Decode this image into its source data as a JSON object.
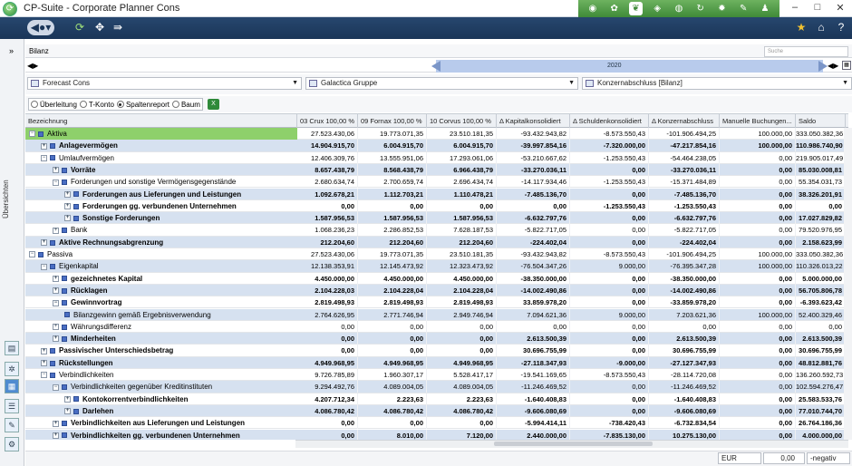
{
  "app": {
    "title": "CP-Suite - Corporate Planner Cons"
  },
  "toolbar_icons": [
    "home-icon",
    "gear-icon",
    "leaf-icon",
    "map-icon",
    "globe-icon",
    "refresh-icon",
    "settings-icon",
    "edit-icon",
    "person-icon"
  ],
  "window": {
    "minimize": "–",
    "maximize": "□",
    "close": "✕"
  },
  "nav": {
    "expand_glyph": "»"
  },
  "rail": {
    "label": "Übersichten"
  },
  "bilanz": {
    "label": "Bilanz",
    "search_placeholder": "Suche"
  },
  "timeline": {
    "year": "2020"
  },
  "selectors": {
    "scenario": "Forecast Cons",
    "group": "Galactica Gruppe",
    "report": "Konzernabschluss [Bilanz]"
  },
  "view_options": [
    {
      "label": "Überleitung",
      "selected": false
    },
    {
      "label": "T-Konto",
      "selected": false
    },
    {
      "label": "Spaltenreport",
      "selected": true
    },
    {
      "label": "Baum",
      "selected": false
    }
  ],
  "grid": {
    "headers": [
      "Bezeichnung",
      "03 Crux 100,00 %",
      "09 Fornax 100,00 %",
      "10 Corvus 100,00 %",
      "Δ Kapitalkonsolidiert",
      "Δ Schuldenkonsolidiert",
      "Δ Konzernabschluss",
      "Manuelle Buchungen...",
      "Saldo"
    ],
    "rows": [
      {
        "level": 0,
        "exp": "−",
        "label": "Aktiva",
        "bold": false,
        "sel": false,
        "green": true,
        "v": [
          "27.523.430,06",
          "19.773.071,35",
          "23.510.181,35",
          "-93.432.943,82",
          "-8.573.550,43",
          "-101.906.494,25",
          "100.000,00",
          "333.050.382,36"
        ]
      },
      {
        "level": 1,
        "exp": "+",
        "label": "Anlagevermögen",
        "bold": true,
        "sel": true,
        "v": [
          "14.904.915,70",
          "6.004.915,70",
          "6.004.915,70",
          "-39.997.854,16",
          "-7.320.000,00",
          "-47.217.854,16",
          "100.000,00",
          "110.986.740,90"
        ]
      },
      {
        "level": 1,
        "exp": "−",
        "label": "Umlaufvermögen",
        "bold": false,
        "sel": false,
        "v": [
          "12.406.309,76",
          "13.555.951,06",
          "17.293.061,06",
          "-53.210.667,62",
          "-1.253.550,43",
          "-54.464.238,05",
          "0,00",
          "219.905.017,49"
        ]
      },
      {
        "level": 2,
        "exp": "+",
        "label": "Vorräte",
        "bold": true,
        "sel": true,
        "v": [
          "8.657.438,79",
          "8.568.438,79",
          "6.966.438,79",
          "-33.270.036,11",
          "0,00",
          "-33.270.036,11",
          "0,00",
          "85.030.008,81"
        ]
      },
      {
        "level": 2,
        "exp": "−",
        "label": "Forderungen und sonstige Vermögensgegenstände",
        "bold": false,
        "sel": false,
        "v": [
          "2.680.634,74",
          "2.700.659,74",
          "2.696.434,74",
          "-14.117.934,46",
          "-1.253.550,43",
          "-15.371.484,89",
          "0,00",
          "55.354.031,73"
        ]
      },
      {
        "level": 3,
        "exp": "+",
        "label": "Forderungen aus Lieferungen und Leistungen",
        "bold": true,
        "sel": true,
        "v": [
          "1.092.678,21",
          "1.112.703,21",
          "1.110.478,21",
          "-7.485.136,70",
          "0,00",
          "-7.485.136,70",
          "0,00",
          "38.326.201,91"
        ]
      },
      {
        "level": 3,
        "exp": "+",
        "label": "Forderungen gg. verbundenen Unternehmen",
        "bold": true,
        "sel": false,
        "v": [
          "0,00",
          "0,00",
          "0,00",
          "0,00",
          "-1.253.550,43",
          "-1.253.550,43",
          "0,00",
          "0,00"
        ]
      },
      {
        "level": 3,
        "exp": "+",
        "label": "Sonstige Forderungen",
        "bold": true,
        "sel": true,
        "v": [
          "1.587.956,53",
          "1.587.956,53",
          "1.587.956,53",
          "-6.632.797,76",
          "0,00",
          "-6.632.797,76",
          "0,00",
          "17.027.829,82"
        ]
      },
      {
        "level": 2,
        "exp": "+",
        "label": "Bank",
        "bold": false,
        "sel": false,
        "v": [
          "1.068.236,23",
          "2.286.852,53",
          "7.628.187,53",
          "-5.822.717,05",
          "0,00",
          "-5.822.717,05",
          "0,00",
          "79.520.976,95"
        ]
      },
      {
        "level": 1,
        "exp": "+",
        "label": "Aktive Rechnungsabgrenzung",
        "bold": true,
        "sel": true,
        "v": [
          "212.204,60",
          "212.204,60",
          "212.204,60",
          "-224.402,04",
          "0,00",
          "-224.402,04",
          "0,00",
          "2.158.623,99"
        ]
      },
      {
        "level": 0,
        "exp": "−",
        "label": "Passiva",
        "bold": false,
        "sel": false,
        "v": [
          "27.523.430,06",
          "19.773.071,35",
          "23.510.181,35",
          "-93.432.943,82",
          "-8.573.550,43",
          "-101.906.494,25",
          "100.000,00",
          "333.050.382,36"
        ]
      },
      {
        "level": 1,
        "exp": "−",
        "label": "Eigenkapital",
        "bold": false,
        "sel": true,
        "v": [
          "12.138.353,91",
          "12.145.473,92",
          "12.323.473,92",
          "-76.504.347,26",
          "9.000,00",
          "-76.395.347,28",
          "100.000,00",
          "110.326.013,22"
        ]
      },
      {
        "level": 2,
        "exp": "+",
        "label": "gezeichnetes Kapital",
        "bold": true,
        "sel": false,
        "v": [
          "4.450.000,00",
          "4.450.000,00",
          "4.450.000,00",
          "-38.350.000,00",
          "0,00",
          "-38.350.000,00",
          "0,00",
          "5.000.000,00"
        ]
      },
      {
        "level": 2,
        "exp": "+",
        "label": "Rücklagen",
        "bold": true,
        "sel": true,
        "v": [
          "2.104.228,03",
          "2.104.228,04",
          "2.104.228,04",
          "-14.002.490,86",
          "0,00",
          "-14.002.490,86",
          "0,00",
          "56.705.806,78"
        ]
      },
      {
        "level": 2,
        "exp": "−",
        "label": "Gewinnvortrag",
        "bold": true,
        "sel": false,
        "v": [
          "2.819.498,93",
          "2.819.498,93",
          "2.819.498,93",
          "33.859.978,20",
          "0,00",
          "-33.859.978,20",
          "0,00",
          "-6.393.623,42"
        ]
      },
      {
        "level": 3,
        "exp": "",
        "label": "Bilanzgewinn gemäß Ergebnisverwendung",
        "bold": false,
        "sel": true,
        "v": [
          "2.764.626,95",
          "2.771.746,94",
          "2.949.746,94",
          "7.094.621,36",
          "9.000,00",
          "7.203.621,36",
          "100.000,00",
          "52.400.329,46"
        ]
      },
      {
        "level": 2,
        "exp": "+",
        "label": "Währungsdifferenz",
        "bold": false,
        "sel": false,
        "v": [
          "0,00",
          "0,00",
          "0,00",
          "0,00",
          "0,00",
          "0,00",
          "0,00",
          "0,00"
        ]
      },
      {
        "level": 2,
        "exp": "+",
        "label": "Minderheiten",
        "bold": true,
        "sel": true,
        "v": [
          "0,00",
          "0,00",
          "0,00",
          "2.613.500,39",
          "0,00",
          "2.613.500,39",
          "0,00",
          "2.613.500,39"
        ]
      },
      {
        "level": 1,
        "exp": "+",
        "label": "Passivischer Unterschiedsbetrag",
        "bold": true,
        "sel": false,
        "v": [
          "0,00",
          "0,00",
          "0,00",
          "30.696.755,99",
          "0,00",
          "30.696.755,99",
          "0,00",
          "30.696.755,99"
        ]
      },
      {
        "level": 1,
        "exp": "+",
        "label": "Rückstellungen",
        "bold": true,
        "sel": true,
        "v": [
          "4.949.968,95",
          "4.949.968,95",
          "4.949.968,95",
          "-27.118.347,93",
          "-9.000,00",
          "-27.127.347,93",
          "0,00",
          "48.812.881,76"
        ]
      },
      {
        "level": 1,
        "exp": "−",
        "label": "Verbindlichkeiten",
        "bold": false,
        "sel": false,
        "v": [
          "9.726.785,89",
          "1.960.307,17",
          "5.528.417,17",
          "-19.541.169,65",
          "-8.573.550,43",
          "-28.114.720,08",
          "0,00",
          "136.260.592,73"
        ]
      },
      {
        "level": 2,
        "exp": "−",
        "label": "Verbindlichkeiten gegenüber Kreditinstituten",
        "bold": false,
        "sel": true,
        "v": [
          "9.294.492,76",
          "4.089.004,05",
          "4.089.004,05",
          "-11.246.469,52",
          "0,00",
          "-11.246.469,52",
          "0,00",
          "102.594.276,47"
        ]
      },
      {
        "level": 3,
        "exp": "+",
        "label": "Kontokorrentverbindlichkeiten",
        "bold": true,
        "sel": false,
        "v": [
          "4.207.712,34",
          "2.223,63",
          "2.223,63",
          "-1.640.408,83",
          "0,00",
          "-1.640.408,83",
          "0,00",
          "25.583.533,76"
        ]
      },
      {
        "level": 3,
        "exp": "+",
        "label": "Darlehen",
        "bold": true,
        "sel": true,
        "v": [
          "4.086.780,42",
          "4.086.780,42",
          "4.086.780,42",
          "-9.606.080,69",
          "0,00",
          "-9.606.080,69",
          "0,00",
          "77.010.744,70"
        ]
      },
      {
        "level": 2,
        "exp": "+",
        "label": "Verbindlichkeiten aus Lieferungen und Leistungen",
        "bold": true,
        "sel": false,
        "v": [
          "0,00",
          "0,00",
          "0,00",
          "-5.994.414,11",
          "-738.420,43",
          "-6.732.834,54",
          "0,00",
          "26.764.186,36"
        ]
      },
      {
        "level": 2,
        "exp": "+",
        "label": "Verbindlichkeiten gg. verbundenen Unternehmen",
        "bold": true,
        "sel": true,
        "v": [
          "0,00",
          "8.010,00",
          "7.120,00",
          "2.440.000,00",
          "-7.835.130,00",
          "10.275.130,00",
          "0,00",
          "4.000.000,00"
        ]
      }
    ]
  },
  "status": {
    "currency": "EUR",
    "value": "0,00",
    "sign": "-negativ"
  }
}
